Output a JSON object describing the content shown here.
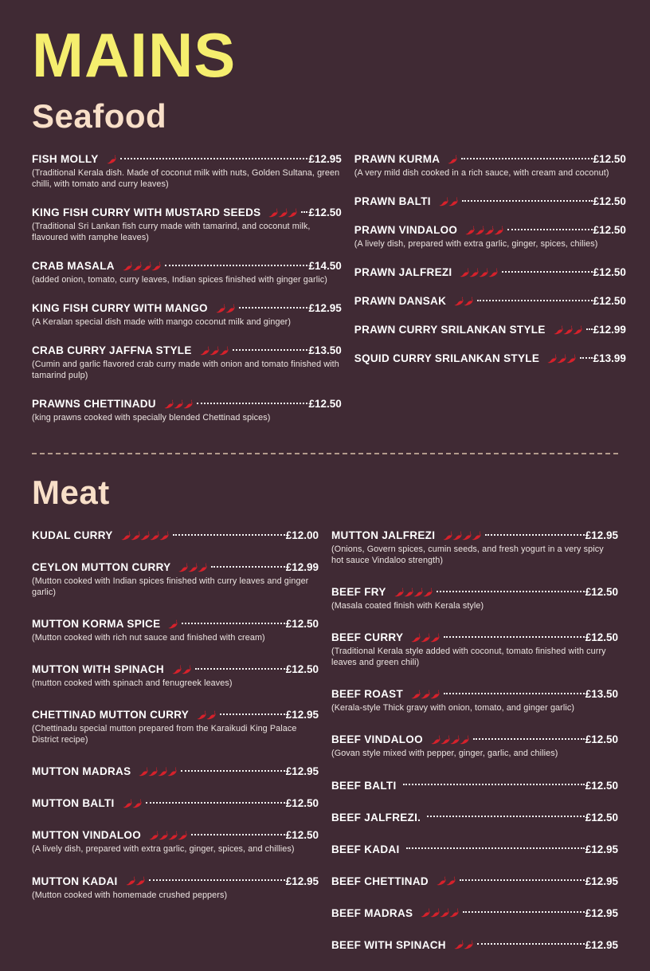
{
  "page": {
    "title": "MAINS"
  },
  "colors": {
    "background": "#402a34",
    "title_yellow": "#f5ee6e",
    "heading_peach": "#f8dfc8",
    "chili_red": "#d6212b",
    "item_text": "#ffffff",
    "description_text": "#ece4e1",
    "divider": "#b39b8c"
  },
  "icons": {
    "chili": "chili-pepper-icon"
  },
  "sections": [
    {
      "name": "Seafood",
      "divider_before": false,
      "columns": [
        [
          {
            "name": "FISH MOLLY",
            "heat": 1,
            "price": "£12.95",
            "desc": "(Traditional Kerala dish. Made of coconut milk with nuts, Golden Sultana, green chilli, with tomato and curry leaves)"
          },
          {
            "name": "KING FISH CURRY WITH MUSTARD SEEDS",
            "heat": 3,
            "price": "£12.50",
            "desc": "(Traditional Sri Lankan fish curry made with tamarind, and coconut milk, flavoured with ramphe leaves)"
          },
          {
            "name": "CRAB MASALA",
            "heat": 4,
            "price": "£14.50",
            "desc": "(added onion, tomato, curry leaves, Indian spices finished with ginger garlic)"
          },
          {
            "name": "KING FISH CURRY WITH MANGO",
            "heat": 2,
            "price": "£12.95",
            "desc": "(A Keralan special dish made with mango coconut milk and ginger)"
          },
          {
            "name": "CRAB CURRY JAFFNA STYLE",
            "heat": 3,
            "price": "£13.50",
            "desc": "(Cumin and garlic flavored crab curry made with onion and tomato finished with tamarind pulp)"
          },
          {
            "name": "PRAWNS CHETTINADU",
            "heat": 3,
            "price": "£12.50",
            "desc": "(king prawns cooked with specially blended Chettinad spices)"
          }
        ],
        [
          {
            "name": "PRAWN KURMA",
            "heat": 1,
            "price": "£12.50",
            "desc": "(A very mild dish cooked in a rich sauce, with cream and coconut)"
          },
          {
            "name": "PRAWN BALTI",
            "heat": 2,
            "price": "£12.50",
            "desc": ""
          },
          {
            "name": "PRAWN VINDALOO",
            "heat": 4,
            "price": "£12.50",
            "desc": "(A lively dish, prepared with extra garlic, ginger, spices, chilies)"
          },
          {
            "name": "PRAWN JALFREZI",
            "heat": 4,
            "price": "£12.50",
            "desc": ""
          },
          {
            "name": "PRAWN DANSAK",
            "heat": 2,
            "price": "£12.50",
            "desc": ""
          },
          {
            "name": "PRAWN CURRY SRILANKAN STYLE",
            "heat": 3,
            "price": "£12.99",
            "desc": ""
          },
          {
            "name": "SQUID CURRY SRILANKAN STYLE",
            "heat": 3,
            "price": "£13.99",
            "desc": ""
          }
        ]
      ]
    },
    {
      "name": "Meat",
      "divider_before": true,
      "columns": [
        [
          {
            "name": "KUDAL CURRY",
            "heat": 5,
            "price": "£12.00",
            "desc": ""
          },
          {
            "name": "CEYLON MUTTON CURRY",
            "heat": 3,
            "price": "£12.99",
            "desc": "(Mutton cooked with Indian spices finished with curry leaves and ginger garlic)"
          },
          {
            "name": "MUTTON KORMA SPICE",
            "heat": 1,
            "price": "£12.50",
            "desc": "(Mutton cooked with rich nut sauce and finished with cream)"
          },
          {
            "name": "MUTTON WITH SPINACH",
            "heat": 2,
            "price": "£12.50",
            "desc": "(mutton cooked with spinach and fenugreek leaves)"
          },
          {
            "name": "CHETTINAD MUTTON CURRY",
            "heat": 2,
            "price": "£12.95",
            "desc": "(Chettinadu special mutton prepared from the Karaikudi King Palace District recipe)"
          },
          {
            "name": "MUTTON MADRAS",
            "heat": 4,
            "price": "£12.95",
            "desc": ""
          },
          {
            "name": "MUTTON BALTI",
            "heat": 2,
            "price": "£12.50",
            "desc": ""
          },
          {
            "name": "MUTTON VINDALOO",
            "heat": 4,
            "price": "£12.50",
            "desc": "(A lively dish, prepared with extra garlic, ginger, spices, and chillies)"
          },
          {
            "name": "MUTTON KADAI",
            "heat": 2,
            "price": "£12.95",
            "desc": "(Mutton cooked with homemade crushed peppers)"
          }
        ],
        [
          {
            "name": "MUTTON JALFREZI",
            "heat": 4,
            "price": "£12.95",
            "desc": "(Onions, Govern spices, cumin seeds, and fresh yogurt in a very spicy hot sauce Vindaloo strength)"
          },
          {
            "name": "BEEF FRY",
            "heat": 4,
            "price": "£12.50",
            "desc": "(Masala coated finish with Kerala style)"
          },
          {
            "name": "BEEF CURRY",
            "heat": 3,
            "price": "£12.50",
            "desc": "(Traditional Kerala style added with coconut, tomato finished with curry leaves and green chili)"
          },
          {
            "name": "BEEF ROAST",
            "heat": 3,
            "price": "£13.50",
            "desc": "(Kerala-style Thick gravy with onion, tomato, and ginger garlic)"
          },
          {
            "name": "BEEF VINDALOO",
            "heat": 4,
            "price": "£12.50",
            "desc": "(Govan style mixed with pepper, ginger, garlic, and chilies)"
          },
          {
            "name": "BEEF BALTI",
            "heat": 0,
            "price": "£12.50",
            "desc": ""
          },
          {
            "name": "BEEF JALFREZI.",
            "heat": 0,
            "price": "£12.50",
            "desc": ""
          },
          {
            "name": "BEEF KADAI",
            "heat": 0,
            "price": "£12.95",
            "desc": ""
          },
          {
            "name": "BEEF CHETTINAD",
            "heat": 2,
            "price": "£12.95",
            "desc": ""
          },
          {
            "name": "BEEF MADRAS",
            "heat": 4,
            "price": "£12.95",
            "desc": ""
          },
          {
            "name": "BEEF WITH SPINACH",
            "heat": 2,
            "price": "£12.95",
            "desc": ""
          }
        ]
      ]
    }
  ]
}
